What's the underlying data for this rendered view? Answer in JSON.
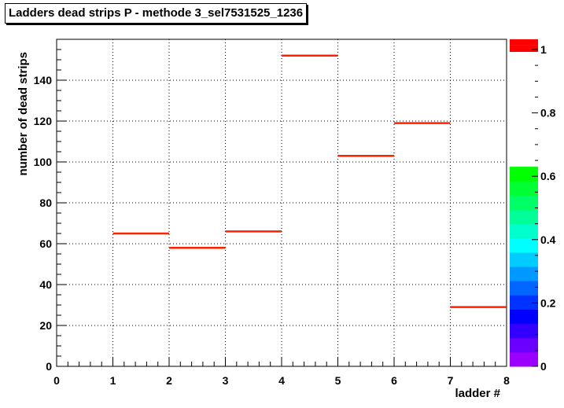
{
  "chart_data": {
    "type": "bar",
    "title": "Ladders dead strips P - methode 3_sel7531525_1236",
    "xlabel": "ladder #",
    "ylabel": "number of dead strips",
    "xlim": [
      0,
      8
    ],
    "ylim": [
      0,
      160
    ],
    "x_ticks": [
      0,
      1,
      2,
      3,
      4,
      5,
      6,
      7,
      8
    ],
    "y_ticks": [
      0,
      20,
      40,
      60,
      80,
      100,
      120,
      140
    ],
    "grid": true,
    "bins": [
      {
        "x0": 1,
        "x1": 2,
        "value": 65
      },
      {
        "x0": 2,
        "x1": 3,
        "value": 58
      },
      {
        "x0": 3,
        "x1": 4,
        "value": 66
      },
      {
        "x0": 4,
        "x1": 5,
        "value": 152
      },
      {
        "x0": 5,
        "x1": 6,
        "value": 103
      },
      {
        "x0": 6,
        "x1": 7,
        "value": 119
      },
      {
        "x0": 7,
        "x1": 8,
        "value": 29
      }
    ],
    "bar_color": "#ff2200",
    "colorbar": {
      "range": [
        0,
        1
      ],
      "ticks": [
        "0",
        "0.2",
        "0.4",
        "0.6",
        "0.8",
        "1"
      ],
      "filled_to": 0.63,
      "top_markers": [
        1.0,
        1.02
      ]
    }
  }
}
